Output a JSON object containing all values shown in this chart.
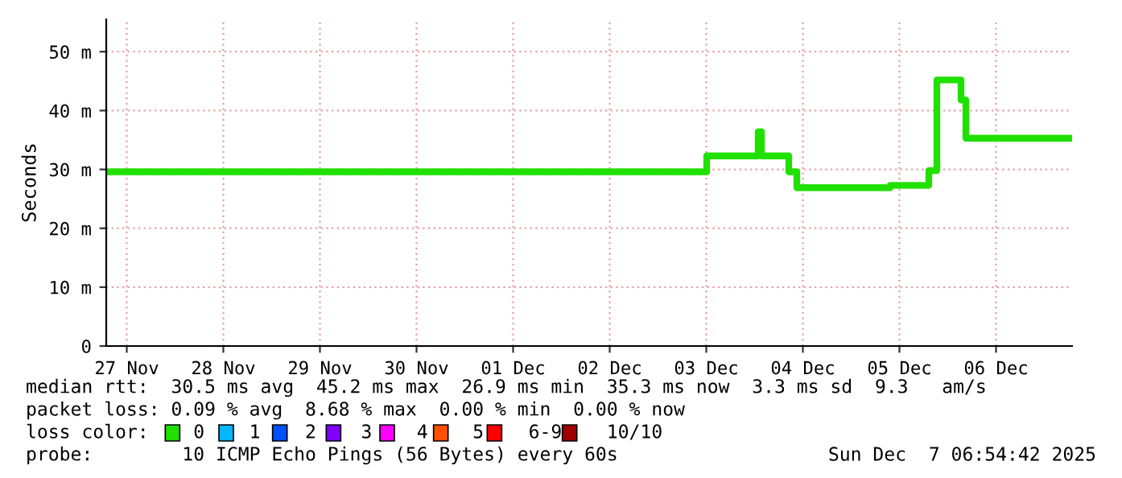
{
  "chart_data": {
    "type": "step",
    "ylabel": "Seconds",
    "x": [
      "2025-11-27T06:54",
      "2025-12-03T12:06",
      "2025-12-04T00:54",
      "2025-12-04T01:42",
      "2025-12-04T08:30",
      "2025-12-04T10:30",
      "2025-12-05T09:42",
      "2025-12-05T19:18",
      "2025-12-05T21:18",
      "2025-12-06T03:18",
      "2025-12-06T04:30",
      "2025-12-07T06:54"
    ],
    "series": [
      {
        "color": "#20e000",
        "values": [
          29.6,
          32.3,
          36.4,
          32.3,
          29.6,
          26.9,
          27.3,
          29.8,
          45.2,
          41.8,
          35.3,
          35.3
        ]
      }
    ],
    "xlim": [
      "2025-11-27T06:54",
      "2025-12-07T06:54"
    ],
    "xticks": [
      {
        "value": "2025-11-27T12:00",
        "label": "27 Nov"
      },
      {
        "value": "2025-11-28T12:00",
        "label": "28 Nov"
      },
      {
        "value": "2025-11-29T12:00",
        "label": "29 Nov"
      },
      {
        "value": "2025-11-30T12:00",
        "label": "30 Nov"
      },
      {
        "value": "2025-12-01T12:00",
        "label": "01 Dec"
      },
      {
        "value": "2025-12-02T12:00",
        "label": "02 Dec"
      },
      {
        "value": "2025-12-03T12:00",
        "label": "03 Dec"
      },
      {
        "value": "2025-12-04T12:00",
        "label": "04 Dec"
      },
      {
        "value": "2025-12-05T12:00",
        "label": "05 Dec"
      },
      {
        "value": "2025-12-06T12:00",
        "label": "06 Dec"
      }
    ],
    "ylim": [
      0,
      55.5
    ],
    "yticks": [
      0,
      {
        "value": 10,
        "label": "10 m"
      },
      {
        "value": 20,
        "label": "20 m"
      },
      {
        "value": 30,
        "label": "30 m"
      },
      {
        "value": 40,
        "label": "40 m"
      },
      {
        "value": 50,
        "label": "50 m"
      }
    ],
    "grid": true,
    "legend": false,
    "line_style": "solid",
    "marker": "none",
    "annotations": [
      "median rtt:  30.5 ms avg  45.2 ms max  26.9 ms min  35.3 ms now  3.3 ms sd  9.3   am/s",
      "packet loss: 0.09 % avg  8.68 % max  0.00 % min  0.00 % now",
      "loss color:    0    1    2    3    4    5    6-9    10/10",
      "probe:        10 ICMP Echo Pings (56 Bytes) every 60s",
      "Sun Dec  7 06:54:42 2025"
    ]
  }
}
